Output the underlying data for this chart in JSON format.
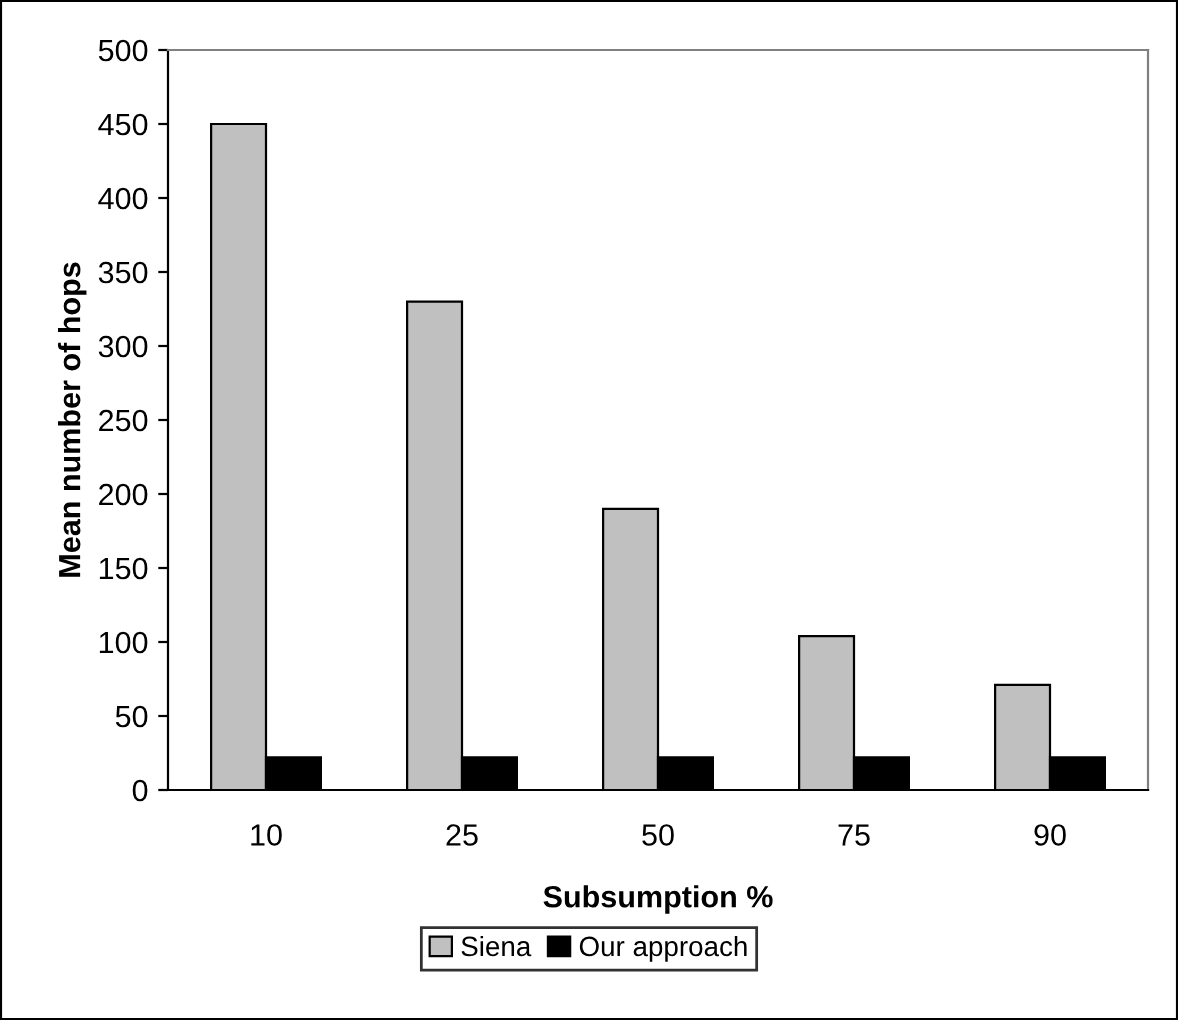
{
  "chart_data": {
    "type": "bar",
    "xlabel": "Subsumption %",
    "ylabel": "Mean number of hops",
    "categories": [
      "10",
      "25",
      "50",
      "75",
      "90"
    ],
    "series": [
      {
        "name": "Siena",
        "color": "#c0c0c0",
        "values": [
          450,
          330,
          190,
          104,
          71
        ]
      },
      {
        "name": "Our approach",
        "color": "#000000",
        "values": [
          22,
          22,
          22,
          22,
          22
        ]
      }
    ],
    "ylim": [
      0,
      500
    ],
    "yticks": [
      0,
      50,
      100,
      150,
      200,
      250,
      300,
      350,
      400,
      450,
      500
    ],
    "grid": false,
    "legend": "bottom"
  }
}
